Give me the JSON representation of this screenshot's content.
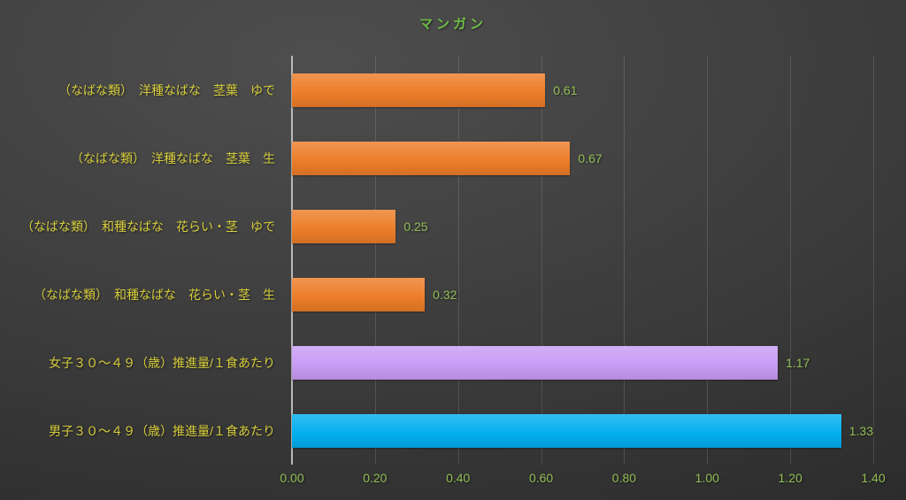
{
  "title": "マンガン",
  "colors": {
    "background_start": "#4e4e4e",
    "background_end": "#242424",
    "title_text": "#6ebf45",
    "category_text": "#d6cd3c",
    "value_text": "#92bf55",
    "tick_text": "#92bf55",
    "axis_line": "#b9b9b9",
    "gridline": "rgba(255,255,255,0.13)",
    "bar_orange": "#ec7c27",
    "bar_purple": "#c89bf5",
    "bar_blue": "#00aeef"
  },
  "chart_data": {
    "type": "bar",
    "orientation": "horizontal",
    "title": "マンガン",
    "categories": [
      "（なばな類）　洋種なばな　茎葉　ゆで",
      "（なばな類）　洋種なばな　茎葉　生",
      "（なばな類）　和種なばな　花らい・茎　ゆで",
      "（なばな類）　和種なばな　花らい・茎　生",
      "女子３０～４９（歳）推進量/１食あたり",
      "男子３０～４９（歳）推進量/１食あたり"
    ],
    "values": [
      0.61,
      0.67,
      0.25,
      0.32,
      1.17,
      1.33
    ],
    "value_labels": [
      "0.61",
      "0.67",
      "0.25",
      "0.32",
      "1.17",
      "1.33"
    ],
    "bar_color_keys": [
      "bar_orange",
      "bar_orange",
      "bar_orange",
      "bar_orange",
      "bar_purple",
      "bar_blue"
    ],
    "xlim": [
      0,
      1.4
    ],
    "x_ticks": [
      "0.00",
      "0.20",
      "0.40",
      "0.60",
      "0.80",
      "1.00",
      "1.20",
      "1.40"
    ],
    "x_tick_values": [
      0,
      0.2,
      0.4,
      0.6,
      0.8,
      1.0,
      1.2,
      1.4
    ],
    "grid": true,
    "legend": false,
    "xlabel": "",
    "ylabel": ""
  }
}
